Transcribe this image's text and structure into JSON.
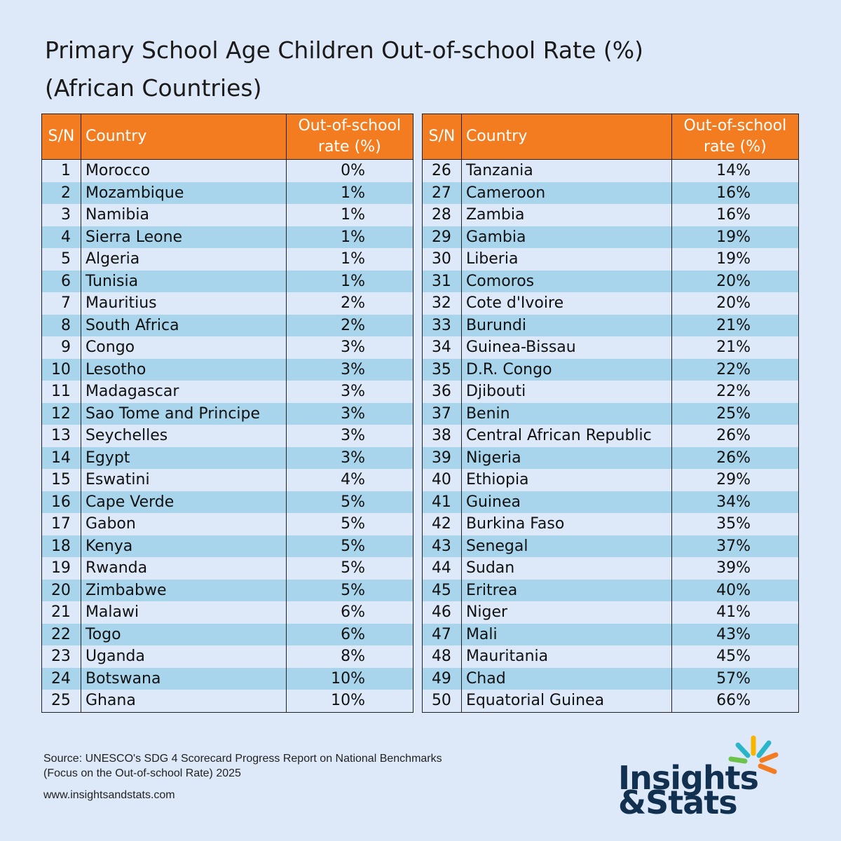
{
  "header": {
    "title_line1": "Primary School Age Children Out-of-school Rate (%)",
    "title_line2": "(African Countries)"
  },
  "tables": [
    {
      "columns": [
        "S/N",
        "Country",
        "Out-of-school rate (%)"
      ],
      "rows": [
        [
          1,
          "Morocco",
          "0%"
        ],
        [
          2,
          "Mozambique",
          "1%"
        ],
        [
          3,
          "Namibia",
          "1%"
        ],
        [
          4,
          "Sierra Leone",
          "1%"
        ],
        [
          5,
          "Algeria",
          "1%"
        ],
        [
          6,
          "Tunisia",
          "1%"
        ],
        [
          7,
          "Mauritius",
          "2%"
        ],
        [
          8,
          "South Africa",
          "2%"
        ],
        [
          9,
          "Congo",
          "3%"
        ],
        [
          10,
          "Lesotho",
          "3%"
        ],
        [
          11,
          "Madagascar",
          "3%"
        ],
        [
          12,
          "Sao Tome and Principe",
          "3%"
        ],
        [
          13,
          "Seychelles",
          "3%"
        ],
        [
          14,
          "Egypt",
          "3%"
        ],
        [
          15,
          "Eswatini",
          "4%"
        ],
        [
          16,
          "Cape Verde",
          "5%"
        ],
        [
          17,
          "Gabon",
          "5%"
        ],
        [
          18,
          "Kenya",
          "5%"
        ],
        [
          19,
          "Rwanda",
          "5%"
        ],
        [
          20,
          "Zimbabwe",
          "5%"
        ],
        [
          21,
          "Malawi",
          "6%"
        ],
        [
          22,
          "Togo",
          "6%"
        ],
        [
          23,
          "Uganda",
          "8%"
        ],
        [
          24,
          "Botswana",
          "10%"
        ],
        [
          25,
          "Ghana",
          "10%"
        ]
      ]
    },
    {
      "columns": [
        "S/N",
        "Country",
        "Out-of-school rate (%)"
      ],
      "rows": [
        [
          26,
          "Tanzania",
          "14%"
        ],
        [
          27,
          "Cameroon",
          "16%"
        ],
        [
          28,
          "Zambia",
          "16%"
        ],
        [
          29,
          "Gambia",
          "19%"
        ],
        [
          30,
          "Liberia",
          "19%"
        ],
        [
          31,
          "Comoros",
          "20%"
        ],
        [
          32,
          "Cote d'Ivoire",
          "20%"
        ],
        [
          33,
          "Burundi",
          "21%"
        ],
        [
          34,
          "Guinea-Bissau",
          "21%"
        ],
        [
          35,
          "D.R. Congo",
          "22%"
        ],
        [
          36,
          "Djibouti",
          "22%"
        ],
        [
          37,
          "Benin",
          "25%"
        ],
        [
          38,
          "Central African Republic",
          "26%"
        ],
        [
          39,
          "Nigeria",
          "26%"
        ],
        [
          40,
          "Ethiopia",
          "29%"
        ],
        [
          41,
          "Guinea",
          "34%"
        ],
        [
          42,
          "Burkina Faso",
          "35%"
        ],
        [
          43,
          "Senegal",
          "37%"
        ],
        [
          44,
          "Sudan",
          "39%"
        ],
        [
          45,
          "Eritrea",
          "40%"
        ],
        [
          46,
          "Niger",
          "41%"
        ],
        [
          47,
          "Mali",
          "43%"
        ],
        [
          48,
          "Mauritania",
          "45%"
        ],
        [
          49,
          "Chad",
          "57%"
        ],
        [
          50,
          "Equatorial Guinea",
          "66%"
        ]
      ]
    }
  ],
  "footer": {
    "source_line1": "Source: UNESCO's SDG 4 Scorecard Progress Report on National Benchmarks",
    "source_line2": "(Focus on the Out-of-school Rate) 2025",
    "url": "www.insightsandstats.com",
    "logo_line1": "Insights",
    "logo_line2": "&Stats"
  }
}
